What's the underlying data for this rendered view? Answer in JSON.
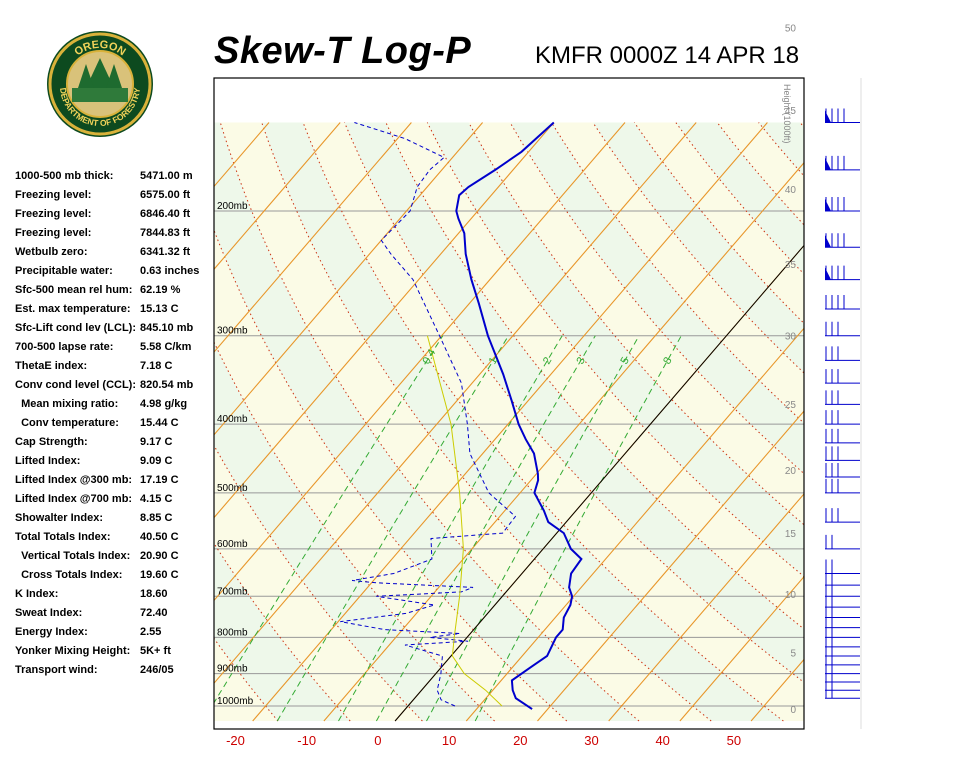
{
  "header": {
    "title": "Skew-T Log-P",
    "station": "KMFR 0000Z 14 APR 18",
    "logo_text_top": "OREGON",
    "logo_text_bottom": "DEPARTMENT OF FORESTRY"
  },
  "indices": [
    {
      "label": "1000-500 mb thick:",
      "value": "5471.00 m"
    },
    {
      "label": "Freezing level:",
      "value": "6575.00 ft"
    },
    {
      "label": "Freezing level:",
      "value": "6846.40 ft"
    },
    {
      "label": "Freezing level:",
      "value": "7844.83 ft"
    },
    {
      "label": "Wetbulb zero:",
      "value": "6341.32 ft"
    },
    {
      "label": "Precipitable water:",
      "value": "0.63 inches"
    },
    {
      "label": "Sfc-500 mean rel hum:",
      "value": "62.19 %"
    },
    {
      "label": "Est. max temperature:",
      "value": "15.13 C"
    },
    {
      "label": "Sfc-Lift cond lev (LCL):",
      "value": "845.10 mb"
    },
    {
      "label": "700-500 lapse rate:",
      "value": "5.58 C/km"
    },
    {
      "label": "ThetaE index:",
      "value": "7.18 C"
    },
    {
      "label": "Conv cond level (CCL):",
      "value": "820.54 mb"
    },
    {
      "label": "  Mean mixing ratio:",
      "value": "4.98 g/kg"
    },
    {
      "label": "  Conv temperature:",
      "value": "15.44 C"
    },
    {
      "label": "Cap Strength:",
      "value": "9.17 C"
    },
    {
      "label": "Lifted Index:",
      "value": "9.09 C"
    },
    {
      "label": "Lifted Index @300 mb:",
      "value": "17.19 C"
    },
    {
      "label": "Lifted Index @700 mb:",
      "value": "4.15 C"
    },
    {
      "label": "Showalter Index:",
      "value": "8.85 C"
    },
    {
      "label": "Total Totals Index:",
      "value": "40.50 C"
    },
    {
      "label": "  Vertical Totals Index:",
      "value": "20.90 C"
    },
    {
      "label": "  Cross Totals Index:",
      "value": "19.60 C"
    },
    {
      "label": "K Index:",
      "value": "18.60"
    },
    {
      "label": "Sweat Index:",
      "value": "72.40"
    },
    {
      "label": "Energy Index:",
      "value": "2.55"
    },
    {
      "label": "Yonker Mixing Height:",
      "value": "5K+ ft"
    },
    {
      "label": "Transport wind:",
      "value": "246/05"
    }
  ],
  "chart_data": {
    "type": "line",
    "title": "Skew-T Log-P",
    "x_axis": {
      "label": "",
      "ticks": [
        "-20",
        "-10",
        "0",
        "10",
        "20",
        "30",
        "40",
        "50"
      ],
      "range": [
        -28,
        55
      ],
      "unit": "C"
    },
    "pressure_axis": {
      "ticks": [
        "200mb",
        "300mb",
        "400mb",
        "500mb",
        "600mb",
        "700mb",
        "800mb",
        "900mb",
        "1000mb"
      ],
      "levels": [
        200,
        300,
        400,
        500,
        600,
        700,
        800,
        900,
        1000
      ],
      "range": [
        150,
        1050
      ],
      "scale": "log"
    },
    "height_axis": {
      "label": "Height (1000ft)",
      "ticks": [
        "0",
        "5",
        "10",
        "15",
        "20",
        "25",
        "30",
        "35",
        "40",
        "45",
        "50"
      ],
      "values": [
        0,
        5,
        10,
        15,
        20,
        25,
        30,
        35,
        40,
        45,
        50
      ]
    },
    "mixing_ratio_labels": [
      "0.4",
      "1",
      "2",
      "3",
      "5",
      "8"
    ],
    "mixing_ratio_values": [
      0.4,
      1,
      2,
      3,
      5,
      8
    ],
    "series": [
      {
        "key": "temperature",
        "color": "#0000cc",
        "style": "solid",
        "points": [
          [
            1010,
            17.8
          ],
          [
            975,
            14.2
          ],
          [
            950,
            12.8
          ],
          [
            920,
            11.5
          ],
          [
            880,
            12.6
          ],
          [
            850,
            13.5
          ],
          [
            800,
            12.5
          ],
          [
            780,
            12.5
          ],
          [
            750,
            11.2
          ],
          [
            720,
            10.6
          ],
          [
            700,
            9.8
          ],
          [
            680,
            8.3
          ],
          [
            650,
            6.9
          ],
          [
            620,
            6.6
          ],
          [
            600,
            3.9
          ],
          [
            570,
            1.0
          ],
          [
            550,
            -2.5
          ],
          [
            530,
            -4.5
          ],
          [
            500,
            -8.0
          ],
          [
            480,
            -9.0
          ],
          [
            470,
            -9.8
          ],
          [
            440,
            -12.8
          ],
          [
            420,
            -15.7
          ],
          [
            400,
            -18.5
          ],
          [
            370,
            -22.4
          ],
          [
            340,
            -26.7
          ],
          [
            300,
            -33.5
          ],
          [
            270,
            -38.7
          ],
          [
            250,
            -42.6
          ],
          [
            230,
            -46.5
          ],
          [
            215,
            -49.2
          ],
          [
            205,
            -51.8
          ],
          [
            200,
            -53.0
          ],
          [
            190,
            -54.5
          ],
          [
            185,
            -54.2
          ],
          [
            175,
            -52.5
          ],
          [
            165,
            -51.0
          ],
          [
            150,
            -50.0
          ]
        ]
      },
      {
        "key": "dewpoint",
        "color": "#0000cc",
        "style": "dashed",
        "points": [
          [
            1000,
            6.6
          ],
          [
            980,
            3.9
          ],
          [
            950,
            2.2
          ],
          [
            900,
            0.7
          ],
          [
            850,
            -1.2
          ],
          [
            820,
            -7.8
          ],
          [
            810,
            0.6
          ],
          [
            800,
            -5.2
          ],
          [
            790,
            -1.5
          ],
          [
            780,
            -12.5
          ],
          [
            760,
            -19.7
          ],
          [
            740,
            -11.5
          ],
          [
            720,
            -8.5
          ],
          [
            700,
            -17.7
          ],
          [
            690,
            -6.3
          ],
          [
            680,
            -5.2
          ],
          [
            670,
            -19.3
          ],
          [
            665,
            -23.0
          ],
          [
            650,
            -18.0
          ],
          [
            620,
            -14.4
          ],
          [
            580,
            -17.0
          ],
          [
            570,
            -7.6
          ],
          [
            540,
            -7.8
          ],
          [
            500,
            -14.4
          ],
          [
            440,
            -21.8
          ],
          [
            400,
            -25.7
          ],
          [
            350,
            -31.5
          ],
          [
            300,
            -40.3
          ],
          [
            250,
            -50.8
          ],
          [
            230,
            -57.0
          ],
          [
            220,
            -60.0
          ],
          [
            200,
            -59.5
          ],
          [
            185,
            -61.4
          ],
          [
            175,
            -61.7
          ],
          [
            168,
            -61.2
          ],
          [
            158,
            -69.0
          ],
          [
            150,
            -78.0
          ]
        ]
      },
      {
        "key": "parcel",
        "color": "#cccc00",
        "style": "solid",
        "points": [
          [
            1000,
            13.2
          ],
          [
            950,
            9.0
          ],
          [
            900,
            4.0
          ],
          [
            850,
            0.2
          ],
          [
            800,
            -1.8
          ],
          [
            700,
            -6.0
          ],
          [
            600,
            -11.2
          ],
          [
            500,
            -18.5
          ],
          [
            400,
            -28.0
          ],
          [
            300,
            -42.0
          ]
        ]
      }
    ],
    "wind_barbs": {
      "pressure_levels": [
        1000,
        975,
        950,
        925,
        900,
        875,
        850,
        825,
        800,
        775,
        750,
        725,
        700,
        675,
        650,
        600,
        550,
        500,
        475,
        450,
        425,
        400,
        375,
        350,
        325,
        300,
        275,
        250,
        225,
        200,
        175,
        150
      ]
    }
  }
}
